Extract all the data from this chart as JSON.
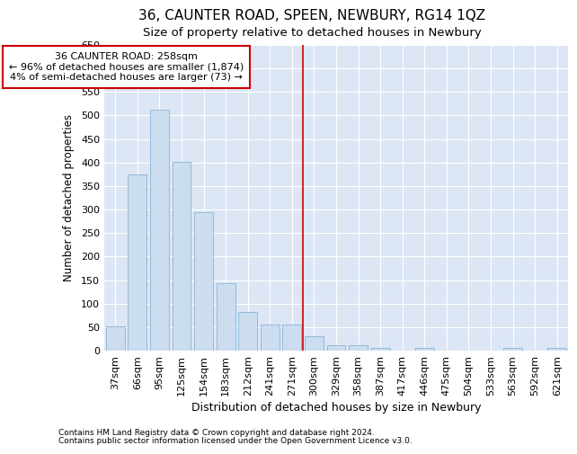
{
  "title": "36, CAUNTER ROAD, SPEEN, NEWBURY, RG14 1QZ",
  "subtitle": "Size of property relative to detached houses in Newbury",
  "xlabel": "Distribution of detached houses by size in Newbury",
  "ylabel": "Number of detached properties",
  "categories": [
    "37sqm",
    "66sqm",
    "95sqm",
    "125sqm",
    "154sqm",
    "183sqm",
    "212sqm",
    "241sqm",
    "271sqm",
    "300sqm",
    "329sqm",
    "358sqm",
    "387sqm",
    "417sqm",
    "446sqm",
    "475sqm",
    "504sqm",
    "533sqm",
    "563sqm",
    "592sqm",
    "621sqm"
  ],
  "values": [
    51,
    375,
    513,
    401,
    294,
    143,
    82,
    55,
    55,
    30,
    11,
    11,
    5,
    0,
    5,
    0,
    0,
    0,
    5,
    0,
    5
  ],
  "bar_color": "#ccddf0",
  "bar_edge_color": "#8ab4d4",
  "vline_x": 8.5,
  "vline_color": "#cc0000",
  "annotation_text": "36 CAUNTER ROAD: 258sqm\n← 96% of detached houses are smaller (1,874)\n4% of semi-detached houses are larger (73) →",
  "annotation_box_facecolor": "#ffffff",
  "annotation_box_edgecolor": "#cc0000",
  "ylim": [
    0,
    650
  ],
  "yticks": [
    0,
    50,
    100,
    150,
    200,
    250,
    300,
    350,
    400,
    450,
    500,
    550,
    600,
    650
  ],
  "fig_bg_color": "#ffffff",
  "plot_bg_color": "#dce6f5",
  "grid_color": "#ffffff",
  "footer1": "Contains HM Land Registry data © Crown copyright and database right 2024.",
  "footer2": "Contains public sector information licensed under the Open Government Licence v3.0.",
  "title_fontsize": 11,
  "subtitle_fontsize": 9.5,
  "xlabel_fontsize": 9,
  "ylabel_fontsize": 8.5,
  "tick_fontsize": 8,
  "annotation_fontsize": 8,
  "footer_fontsize": 6.5
}
